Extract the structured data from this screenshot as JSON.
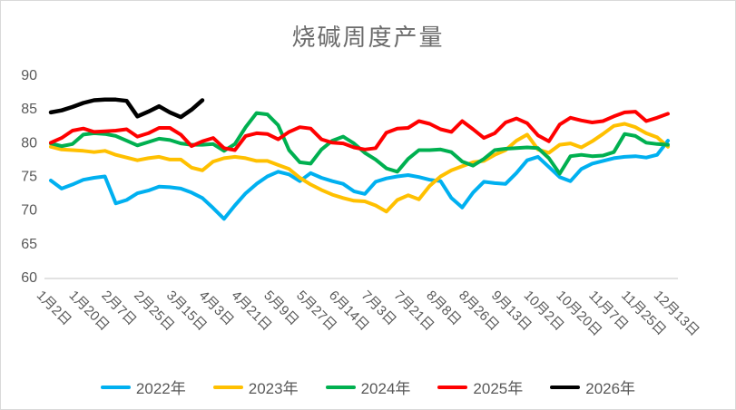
{
  "chart_data": {
    "type": "line",
    "title": "烧碱周度产量",
    "x_labels": [
      "1月2日",
      "1月20日",
      "2月7日",
      "2月25日",
      "3月15日",
      "4月3日",
      "4月21日",
      "5月9日",
      "5月27日",
      "6月14日",
      "7月3日",
      "7月21日",
      "8月8日",
      "8月26日",
      "9月13日",
      "10月2日",
      "10月20日",
      "11月7日",
      "11月25日",
      "12月13日"
    ],
    "points_per_label_interval": 3,
    "ylim": [
      60,
      90
    ],
    "y_ticks": [
      90,
      85,
      80,
      75,
      70,
      65,
      60
    ],
    "grid": "off",
    "legend_position": "bottom",
    "colors": {
      "axis_text": "#595959",
      "axis_line": "#d9d9d9",
      "title_text": "#6b6b6b"
    },
    "series": [
      {
        "name": "2022年",
        "color": "#00B0F0",
        "values": [
          74.4,
          73.2,
          73.8,
          74.5,
          74.8,
          75.0,
          71.0,
          71.5,
          72.5,
          72.9,
          73.5,
          73.4,
          73.2,
          72.6,
          71.8,
          70.3,
          68.7,
          70.7,
          72.5,
          73.9,
          75.0,
          75.7,
          75.3,
          74.3,
          75.5,
          74.8,
          74.3,
          73.9,
          72.8,
          72.4,
          74.2,
          74.7,
          75.0,
          75.2,
          74.9,
          74.5,
          74.3,
          71.8,
          70.4,
          72.6,
          74.2,
          74.0,
          73.9,
          75.5,
          77.4,
          77.9,
          76.4,
          74.9,
          74.3,
          76.1,
          76.9,
          77.3,
          77.7,
          77.9,
          78.0,
          77.8,
          78.2,
          80.3
        ]
      },
      {
        "name": "2023年",
        "color": "#FFC000",
        "values": [
          79.4,
          79.0,
          78.9,
          78.8,
          78.6,
          78.8,
          78.2,
          77.8,
          77.4,
          77.7,
          77.9,
          77.5,
          77.5,
          76.3,
          75.9,
          77.2,
          77.7,
          77.9,
          77.7,
          77.3,
          77.3,
          76.7,
          76.1,
          74.8,
          73.8,
          73.0,
          72.3,
          71.8,
          71.4,
          71.3,
          70.7,
          69.8,
          71.5,
          72.2,
          71.6,
          73.6,
          75.0,
          75.9,
          76.5,
          77.1,
          77.3,
          78.2,
          78.9,
          80.3,
          81.2,
          79.0,
          78.5,
          79.7,
          79.9,
          79.3,
          80.2,
          81.3,
          82.5,
          82.8,
          82.3,
          81.4,
          80.8,
          79.4
        ]
      },
      {
        "name": "2024年",
        "color": "#00B050",
        "values": [
          79.9,
          79.5,
          79.8,
          81.2,
          81.4,
          81.3,
          81.0,
          80.3,
          79.6,
          80.1,
          80.6,
          80.4,
          79.9,
          79.7,
          79.7,
          79.8,
          78.8,
          79.8,
          82.3,
          84.4,
          84.2,
          82.6,
          78.9,
          77.1,
          76.9,
          79.0,
          80.3,
          80.9,
          79.9,
          78.5,
          77.5,
          76.2,
          75.7,
          77.6,
          78.9,
          78.9,
          79.0,
          78.6,
          77.2,
          76.6,
          77.6,
          78.9,
          79.1,
          79.2,
          79.3,
          79.2,
          77.7,
          75.4,
          78.0,
          78.2,
          78.0,
          78.1,
          78.6,
          81.3,
          81.0,
          80.0,
          79.8,
          79.7
        ]
      },
      {
        "name": "2025年",
        "color": "#FF0000",
        "values": [
          80.0,
          80.7,
          81.8,
          82.1,
          81.6,
          81.7,
          81.8,
          82.0,
          80.9,
          81.4,
          82.2,
          82.2,
          81.2,
          79.5,
          80.2,
          80.7,
          79.2,
          78.9,
          81.0,
          81.4,
          81.3,
          80.5,
          81.6,
          82.3,
          82.1,
          80.5,
          80.0,
          79.9,
          79.3,
          79.0,
          79.2,
          81.5,
          82.1,
          82.2,
          83.2,
          82.8,
          82.0,
          81.6,
          83.2,
          82.0,
          80.7,
          81.4,
          83.0,
          83.6,
          82.9,
          81.1,
          80.2,
          82.7,
          83.7,
          83.3,
          83.0,
          83.2,
          83.9,
          84.5,
          84.6,
          83.2,
          83.7,
          84.3
        ]
      },
      {
        "name": "2026年",
        "color": "#000000",
        "values": [
          84.5,
          84.8,
          85.3,
          85.9,
          86.3,
          86.4,
          86.4,
          86.2,
          83.9,
          84.6,
          85.4,
          84.5,
          83.8,
          84.9,
          86.3
        ]
      }
    ]
  }
}
